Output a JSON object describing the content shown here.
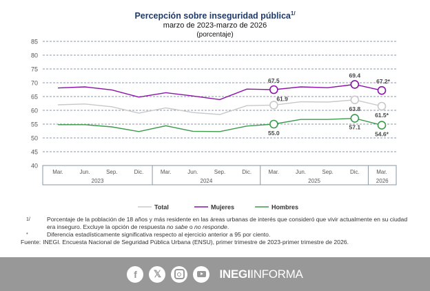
{
  "chart_data": {
    "type": "line",
    "title": "Percepción sobre inseguridad pública",
    "title_note": "1/",
    "subtitle": "marzo de 2023-marzo de 2026",
    "unit_label": "(porcentaje)",
    "ylim": [
      40,
      85
    ],
    "yticks": [
      40,
      45,
      50,
      55,
      60,
      65,
      70,
      75,
      80,
      85
    ],
    "grid": true,
    "legend_position": "bottom",
    "categories": [
      "Mar.",
      "Jun.",
      "Sep.",
      "Dic.",
      "Mar.",
      "Jun.",
      "Sep.",
      "Dic.",
      "Mar.",
      "Jun.",
      "Sep.",
      "Dic.",
      "Mar."
    ],
    "year_groups": [
      {
        "label": "2023",
        "count": 4
      },
      {
        "label": "2024",
        "count": 4
      },
      {
        "label": "2025",
        "count": 4
      },
      {
        "label": "2026",
        "count": 1
      }
    ],
    "series": [
      {
        "name": "Total",
        "color": "#c8c8c8",
        "label_color": "#444444",
        "values": [
          62.0,
          62.3,
          61.3,
          59.0,
          60.9,
          59.2,
          58.5,
          61.7,
          61.9,
          63.1,
          63.0,
          63.8,
          61.5
        ],
        "labels": {
          "8": "61.9",
          "11": "63.8",
          "12": "61.5*"
        }
      },
      {
        "name": "Mujeres",
        "color": "#8a10a8",
        "label_color": "#444444",
        "values": [
          68.1,
          68.5,
          67.4,
          64.8,
          66.4,
          65.2,
          63.9,
          67.7,
          67.5,
          68.5,
          68.2,
          69.4,
          67.2
        ],
        "labels": {
          "8": "67.5",
          "11": "69.4",
          "12": "67.2*"
        }
      },
      {
        "name": "Hombres",
        "color": "#3a9a4a",
        "label_color": "#444444",
        "values": [
          54.8,
          54.8,
          54.0,
          52.3,
          54.4,
          52.4,
          52.3,
          54.3,
          55.0,
          56.7,
          56.7,
          57.1,
          54.6
        ],
        "labels": {
          "8": "55.0",
          "11": "57.1",
          "12": "54.6*"
        }
      }
    ],
    "marked_points": [
      8,
      11,
      12
    ]
  },
  "notes": [
    {
      "mark": "1/",
      "text": "Porcentaje de la población de 18 años y más residente en las áreas urbanas de interés que consideró que vivir actualmente en su ciudad era inseguro. Excluye la opción de respuesta ",
      "italic1": "no sabe",
      "mid": " o ",
      "italic2": "no responde",
      "end": "."
    },
    {
      "mark": "*",
      "text": "Diferencia estadísticamente significativa respecto al ejercicio anterior a 95 por ciento."
    }
  ],
  "source": {
    "label": "Fuente:",
    "text": "INEGI. Encuesta Nacional de Seguridad Pública Urbana (ENSU), primer trimestre de 2023-primer trimestre de 2026."
  },
  "footer": {
    "brand_bold": "INEGI",
    "brand_light": "INFORMA",
    "icons": [
      "facebook-icon",
      "x-icon",
      "instagram-icon",
      "youtube-icon"
    ]
  }
}
